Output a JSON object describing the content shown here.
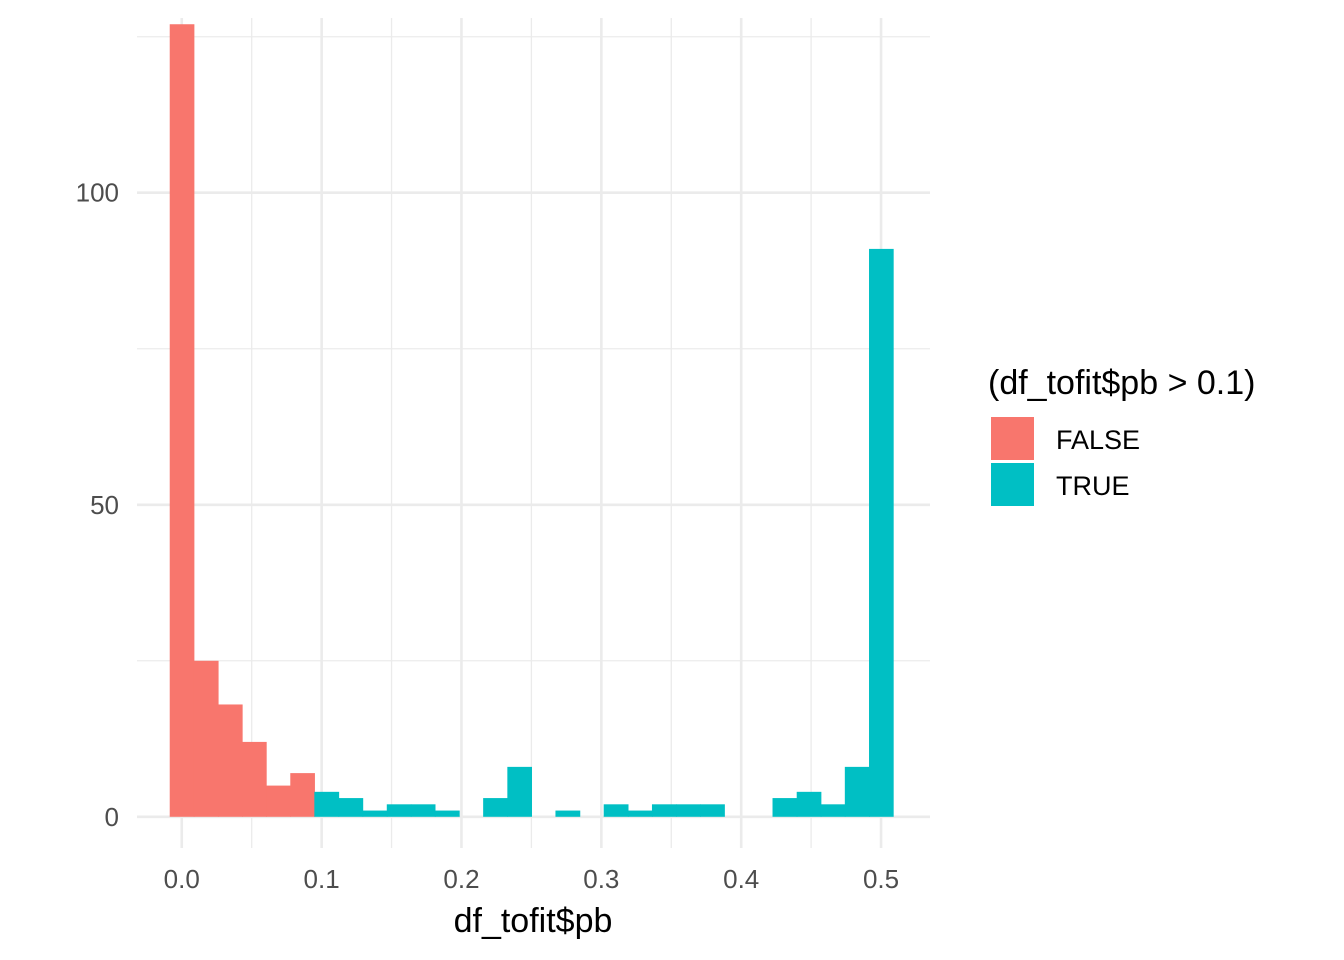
{
  "chart_data": {
    "type": "histogram",
    "title": "",
    "xlabel": "df_tofit$pb",
    "ylabel": "",
    "xlim": [
      -0.032,
      0.535
    ],
    "ylim": [
      -5,
      128
    ],
    "x_ticks": [
      0.0,
      0.1,
      0.2,
      0.3,
      0.4,
      0.5
    ],
    "x_tick_labels": [
      "0.0",
      "0.1",
      "0.2",
      "0.3",
      "0.4",
      "0.5"
    ],
    "y_ticks": [
      0,
      50,
      100
    ],
    "y_tick_labels": [
      "0",
      "50",
      "100"
    ],
    "grid": true,
    "legend_position": "right",
    "legend": {
      "title": "(df_tofit$pb > 0.1)",
      "entries": [
        {
          "label": "FALSE",
          "color": "#F8766D"
        },
        {
          "label": "TRUE",
          "color": "#00BFC4"
        }
      ]
    },
    "bin_width": 0.0172,
    "bins": [
      {
        "x_start": -0.0086,
        "x_end": 0.0086,
        "value": 127,
        "group": "FALSE"
      },
      {
        "x_start": 0.0086,
        "x_end": 0.0259,
        "value": 25,
        "group": "FALSE"
      },
      {
        "x_start": 0.0259,
        "x_end": 0.0431,
        "value": 18,
        "group": "FALSE"
      },
      {
        "x_start": 0.0431,
        "x_end": 0.0603,
        "value": 12,
        "group": "FALSE"
      },
      {
        "x_start": 0.0603,
        "x_end": 0.0776,
        "value": 5,
        "group": "FALSE"
      },
      {
        "x_start": 0.0776,
        "x_end": 0.0948,
        "value": 7,
        "group": "FALSE"
      },
      {
        "x_start": 0.0948,
        "x_end": 0.1121,
        "value": 4,
        "group": "TRUE"
      },
      {
        "x_start": 0.1121,
        "x_end": 0.1293,
        "value": 3,
        "group": "TRUE"
      },
      {
        "x_start": 0.1293,
        "x_end": 0.1466,
        "value": 1,
        "group": "TRUE"
      },
      {
        "x_start": 0.1466,
        "x_end": 0.1638,
        "value": 2,
        "group": "TRUE"
      },
      {
        "x_start": 0.1638,
        "x_end": 0.181,
        "value": 2,
        "group": "TRUE"
      },
      {
        "x_start": 0.181,
        "x_end": 0.1983,
        "value": 1,
        "group": "TRUE"
      },
      {
        "x_start": 0.1983,
        "x_end": 0.2155,
        "value": 0,
        "group": "TRUE"
      },
      {
        "x_start": 0.2155,
        "x_end": 0.2328,
        "value": 3,
        "group": "TRUE"
      },
      {
        "x_start": 0.2328,
        "x_end": 0.25,
        "value": 8,
        "group": "TRUE"
      },
      {
        "x_start": 0.25,
        "x_end": 0.2672,
        "value": 0,
        "group": "TRUE"
      },
      {
        "x_start": 0.2672,
        "x_end": 0.2845,
        "value": 1,
        "group": "TRUE"
      },
      {
        "x_start": 0.2845,
        "x_end": 0.3017,
        "value": 0,
        "group": "TRUE"
      },
      {
        "x_start": 0.3017,
        "x_end": 0.319,
        "value": 2,
        "group": "TRUE"
      },
      {
        "x_start": 0.319,
        "x_end": 0.3362,
        "value": 1,
        "group": "TRUE"
      },
      {
        "x_start": 0.3362,
        "x_end": 0.3534,
        "value": 2,
        "group": "TRUE"
      },
      {
        "x_start": 0.3534,
        "x_end": 0.3707,
        "value": 2,
        "group": "TRUE"
      },
      {
        "x_start": 0.3707,
        "x_end": 0.3879,
        "value": 2,
        "group": "TRUE"
      },
      {
        "x_start": 0.3879,
        "x_end": 0.4052,
        "value": 0,
        "group": "TRUE"
      },
      {
        "x_start": 0.4052,
        "x_end": 0.4224,
        "value": 0,
        "group": "TRUE"
      },
      {
        "x_start": 0.4224,
        "x_end": 0.4397,
        "value": 3,
        "group": "TRUE"
      },
      {
        "x_start": 0.4397,
        "x_end": 0.4569,
        "value": 4,
        "group": "TRUE"
      },
      {
        "x_start": 0.4569,
        "x_end": 0.4741,
        "value": 2,
        "group": "TRUE"
      },
      {
        "x_start": 0.4741,
        "x_end": 0.4914,
        "value": 8,
        "group": "TRUE"
      },
      {
        "x_start": 0.4914,
        "x_end": 0.5086,
        "value": 91,
        "group": "TRUE"
      }
    ]
  }
}
